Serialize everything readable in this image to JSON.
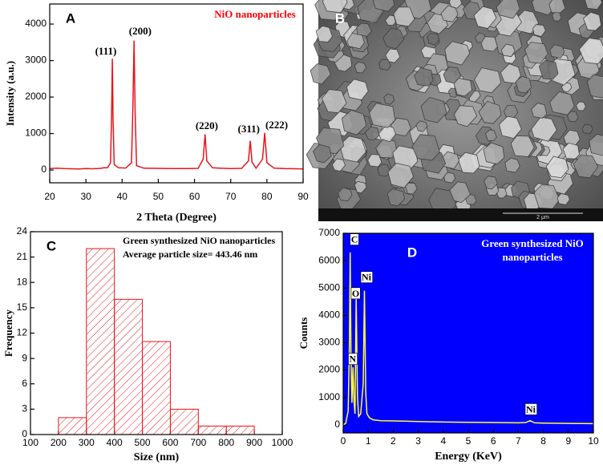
{
  "chart_data": [
    {
      "type": "line",
      "panel_label": "A",
      "title": "NiO nanoparticles",
      "title_color": "#ff0000",
      "x_label": "2 Theta (Degree)",
      "y_label": "Intensity (a.u.)",
      "color": "#e8141b",
      "x": [
        20,
        22,
        24,
        26,
        28,
        30,
        32,
        34,
        35,
        36,
        36.8,
        37.1,
        37.3,
        37.5,
        37.8,
        39,
        41,
        42.6,
        43.0,
        43.3,
        43.6,
        44,
        46,
        50,
        54,
        58,
        61,
        62.4,
        62.9,
        63.4,
        65,
        67,
        70,
        73,
        74.9,
        75.4,
        75.9,
        77,
        78.8,
        79.4,
        80,
        82,
        85,
        88,
        90
      ],
      "values": [
        40,
        50,
        40,
        35,
        30,
        40,
        35,
        45,
        60,
        60,
        200,
        1500,
        3050,
        1400,
        150,
        60,
        55,
        200,
        1800,
        3550,
        1600,
        120,
        50,
        45,
        40,
        40,
        45,
        300,
        980,
        250,
        60,
        50,
        40,
        45,
        250,
        800,
        220,
        50,
        300,
        1020,
        200,
        50,
        40,
        35,
        30
      ],
      "xlim": [
        20,
        90
      ],
      "xticks": [
        20,
        30,
        40,
        50,
        60,
        70,
        80,
        90
      ],
      "ylim": [
        -350,
        4550
      ],
      "yticks": [
        0,
        1000,
        2000,
        3000,
        4000
      ],
      "annotations": [
        {
          "text": "(111)",
          "x": 35.5,
          "y": 3230
        },
        {
          "text": "(200)",
          "x": 45,
          "y": 3780
        },
        {
          "text": "(220)",
          "x": 63.4,
          "y": 1190
        },
        {
          "text": "(311)",
          "x": 75,
          "y": 1100
        },
        {
          "text": "(222)",
          "x": 82.7,
          "y": 1210
        }
      ]
    },
    {
      "type": "image",
      "panel_label": "B",
      "scale_label": "2 μm"
    },
    {
      "type": "histogram",
      "panel_label": "C",
      "x_label": "Size (nm)",
      "y_label": "Frequency",
      "color": "#e8141b",
      "legend": [
        "Green synthesized NiO nanoparticles",
        "Average particle size= 443.46 nm"
      ],
      "bins": [
        200,
        300,
        400,
        500,
        600,
        700,
        800,
        900
      ],
      "values": [
        2,
        22,
        16,
        11,
        3,
        1,
        1
      ],
      "xlim": [
        100,
        1000
      ],
      "xticks": [
        100,
        200,
        300,
        400,
        500,
        600,
        700,
        800,
        900,
        1000
      ],
      "ylim": [
        0,
        24
      ],
      "yticks": [
        0,
        3,
        6,
        9,
        12,
        15,
        18,
        21,
        24
      ]
    },
    {
      "type": "line",
      "panel_label": "D",
      "title": [
        "Green synthesized NiO",
        "nanoparticles"
      ],
      "title_color": "#ffffff",
      "x_label": "Energy (KeV)",
      "y_label": "Counts",
      "color": "#ffff33",
      "plot_background": "#0000ff",
      "x": [
        0,
        0.1,
        0.2,
        0.25,
        0.28,
        0.31,
        0.35,
        0.39,
        0.43,
        0.47,
        0.52,
        0.57,
        0.62,
        0.7,
        0.8,
        0.85,
        0.9,
        0.95,
        1.05,
        1.2,
        1.5,
        2,
        3,
        4,
        5,
        6,
        7,
        7.3,
        7.47,
        7.65,
        8,
        9,
        10
      ],
      "values": [
        0,
        50,
        500,
        3000,
        6300,
        2500,
        800,
        2100,
        900,
        400,
        4600,
        1000,
        300,
        400,
        1500,
        4900,
        1200,
        400,
        250,
        180,
        150,
        140,
        120,
        100,
        90,
        80,
        70,
        80,
        150,
        70,
        60,
        50,
        40
      ],
      "xlim": [
        0,
        10
      ],
      "xticks": [
        0,
        1,
        2,
        3,
        4,
        5,
        6,
        7,
        8,
        9,
        10
      ],
      "ylim": [
        -300,
        7000
      ],
      "yticks": [
        0,
        1000,
        2000,
        3000,
        4000,
        5000,
        6000,
        7000
      ],
      "peak_labels": [
        {
          "text": "C",
          "x": 0.45,
          "y": 6740
        },
        {
          "text": "O",
          "x": 0.5,
          "y": 4770
        },
        {
          "text": "Ni",
          "x": 0.93,
          "y": 5360
        },
        {
          "text": "N",
          "x": 0.38,
          "y": 2370
        },
        {
          "text": "Ni",
          "x": 7.5,
          "y": 530
        }
      ]
    }
  ]
}
